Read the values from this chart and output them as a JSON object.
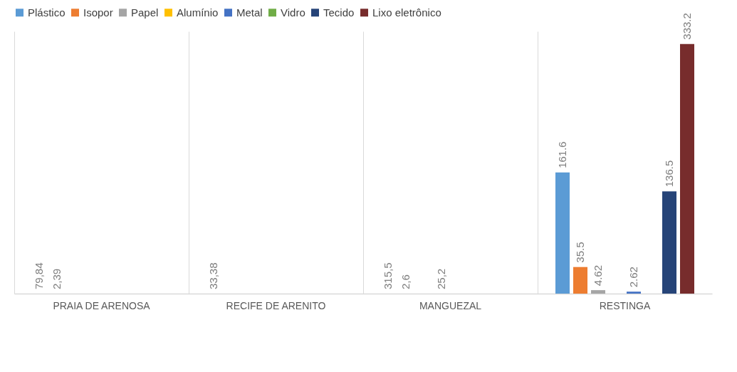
{
  "chart_data": {
    "type": "bar",
    "categories": [
      "PRAIA DE ARENOSA",
      "RECIFE DE ARENITO",
      "MANGUEZAL",
      "RESTINGA"
    ],
    "series": [
      {
        "name": "Plástico",
        "color": "#5b9bd5",
        "values": [
          null,
          null,
          null,
          161.6
        ],
        "value_labels": [
          "79,84",
          "33,38",
          "315,5",
          "161.6"
        ]
      },
      {
        "name": "Isopor",
        "color": "#ed7d31",
        "values": [
          null,
          null,
          null,
          35.5
        ],
        "value_labels": [
          "2,39",
          null,
          "2,6",
          "35.5"
        ]
      },
      {
        "name": "Papel",
        "color": "#a5a5a5",
        "values": [
          null,
          null,
          null,
          4.62
        ],
        "value_labels": [
          null,
          null,
          null,
          "4.62"
        ]
      },
      {
        "name": "Alumínio",
        "color": "#ffc000",
        "values": [
          null,
          null,
          null,
          null
        ],
        "value_labels": [
          null,
          null,
          "25,2",
          null
        ]
      },
      {
        "name": "Metal",
        "color": "#4472c4",
        "values": [
          null,
          null,
          null,
          2.62
        ],
        "value_labels": [
          null,
          null,
          null,
          "2.62"
        ]
      },
      {
        "name": "Vidro",
        "color": "#70ad47",
        "values": [
          null,
          null,
          null,
          null
        ],
        "value_labels": [
          null,
          null,
          null,
          null
        ]
      },
      {
        "name": "Tecido",
        "color": "#264478",
        "values": [
          null,
          null,
          null,
          136.5
        ],
        "value_labels": [
          null,
          null,
          null,
          "136.5"
        ]
      },
      {
        "name": "Lixo eletrônico",
        "color": "#772c2c",
        "values": [
          null,
          null,
          null,
          333.2
        ],
        "value_labels": [
          null,
          null,
          null,
          "333.2"
        ]
      }
    ],
    "ylim": [
      0,
      350
    ],
    "tick_labels": "x",
    "grid": "x",
    "legend": "top"
  }
}
